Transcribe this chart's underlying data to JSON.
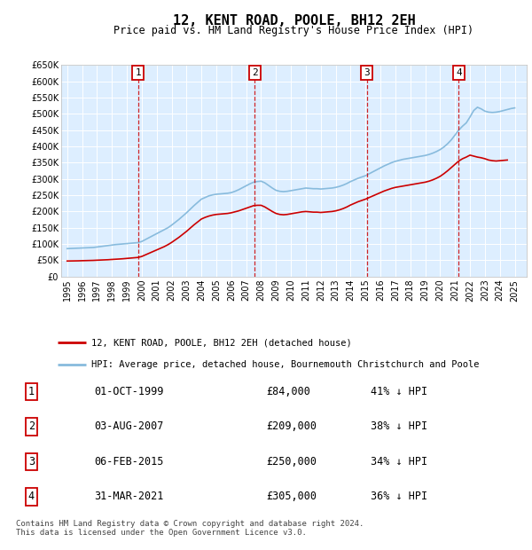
{
  "title": "12, KENT ROAD, POOLE, BH12 2EH",
  "subtitle": "Price paid vs. HM Land Registry's House Price Index (HPI)",
  "ylim": [
    0,
    650000
  ],
  "yticks": [
    0,
    50000,
    100000,
    150000,
    200000,
    250000,
    300000,
    350000,
    400000,
    450000,
    500000,
    550000,
    600000,
    650000
  ],
  "ytick_labels": [
    "£0",
    "£50K",
    "£100K",
    "£150K",
    "£200K",
    "£250K",
    "£300K",
    "£350K",
    "£400K",
    "£450K",
    "£500K",
    "£550K",
    "£600K",
    "£650K"
  ],
  "xlim_start": 1994.6,
  "xlim_end": 2025.8,
  "plot_bg_color": "#ddeeff",
  "grid_color": "#ffffff",
  "sale_line_color": "#cc0000",
  "hpi_line_color": "#88bbdd",
  "sales": [
    {
      "year": 1999.75,
      "price": 84000,
      "label": "1"
    },
    {
      "year": 2007.58,
      "price": 209000,
      "label": "2"
    },
    {
      "year": 2015.09,
      "price": 250000,
      "label": "3"
    },
    {
      "year": 2021.25,
      "price": 305000,
      "label": "4"
    }
  ],
  "legend_items": [
    {
      "label": "12, KENT ROAD, POOLE, BH12 2EH (detached house)",
      "color": "#cc0000"
    },
    {
      "label": "HPI: Average price, detached house, Bournemouth Christchurch and Poole",
      "color": "#88bbdd"
    }
  ],
  "table_rows": [
    {
      "num": "1",
      "date": "01-OCT-1999",
      "price": "£84,000",
      "hpi": "41% ↓ HPI"
    },
    {
      "num": "2",
      "date": "03-AUG-2007",
      "price": "£209,000",
      "hpi": "38% ↓ HPI"
    },
    {
      "num": "3",
      "date": "06-FEB-2015",
      "price": "£250,000",
      "hpi": "34% ↓ HPI"
    },
    {
      "num": "4",
      "date": "31-MAR-2021",
      "price": "£305,000",
      "hpi": "36% ↓ HPI"
    }
  ],
  "footer": "Contains HM Land Registry data © Crown copyright and database right 2024.\nThis data is licensed under the Open Government Licence v3.0.",
  "hpi_years": [
    1995,
    1995.25,
    1995.5,
    1995.75,
    1996,
    1996.25,
    1996.5,
    1996.75,
    1997,
    1997.25,
    1997.5,
    1997.75,
    1998,
    1998.25,
    1998.5,
    1998.75,
    1999,
    1999.25,
    1999.5,
    1999.75,
    2000,
    2000.25,
    2000.5,
    2000.75,
    2001,
    2001.25,
    2001.5,
    2001.75,
    2002,
    2002.25,
    2002.5,
    2002.75,
    2003,
    2003.25,
    2003.5,
    2003.75,
    2004,
    2004.25,
    2004.5,
    2004.75,
    2005,
    2005.25,
    2005.5,
    2005.75,
    2006,
    2006.25,
    2006.5,
    2006.75,
    2007,
    2007.25,
    2007.5,
    2007.75,
    2008,
    2008.25,
    2008.5,
    2008.75,
    2009,
    2009.25,
    2009.5,
    2009.75,
    2010,
    2010.25,
    2010.5,
    2010.75,
    2011,
    2011.25,
    2011.5,
    2011.75,
    2012,
    2012.25,
    2012.5,
    2012.75,
    2013,
    2013.25,
    2013.5,
    2013.75,
    2014,
    2014.25,
    2014.5,
    2014.75,
    2015,
    2015.25,
    2015.5,
    2015.75,
    2016,
    2016.25,
    2016.5,
    2016.75,
    2017,
    2017.25,
    2017.5,
    2017.75,
    2018,
    2018.25,
    2018.5,
    2018.75,
    2019,
    2019.25,
    2019.5,
    2019.75,
    2020,
    2020.25,
    2020.5,
    2020.75,
    2021,
    2021.25,
    2021.5,
    2021.75,
    2022,
    2022.25,
    2022.5,
    2022.75,
    2023,
    2023.25,
    2023.5,
    2023.75,
    2024,
    2024.25,
    2024.5,
    2024.75,
    2025
  ],
  "hpi_values": [
    86000,
    86500,
    87000,
    87500,
    88000,
    88500,
    89000,
    89500,
    91000,
    92500,
    94000,
    95500,
    97000,
    98500,
    99500,
    100500,
    101500,
    102500,
    103500,
    104500,
    108000,
    114000,
    120000,
    126000,
    132000,
    138000,
    144000,
    150000,
    158000,
    167000,
    176000,
    186000,
    196000,
    207000,
    218000,
    228000,
    238000,
    243000,
    248000,
    251000,
    253000,
    254000,
    255000,
    256000,
    258000,
    262000,
    267000,
    273000,
    279000,
    285000,
    290000,
    292000,
    293000,
    288000,
    280000,
    272000,
    265000,
    262000,
    261000,
    262000,
    264000,
    266000,
    268000,
    270000,
    272000,
    271000,
    270000,
    270000,
    269000,
    270000,
    271000,
    272000,
    274000,
    277000,
    281000,
    286000,
    292000,
    297000,
    302000,
    306000,
    310000,
    316000,
    322000,
    328000,
    334000,
    340000,
    345000,
    350000,
    354000,
    357000,
    360000,
    362000,
    364000,
    366000,
    368000,
    370000,
    372000,
    375000,
    379000,
    384000,
    390000,
    398000,
    408000,
    420000,
    435000,
    450000,
    462000,
    472000,
    490000,
    510000,
    520000,
    515000,
    508000,
    505000,
    504000,
    505000,
    507000,
    510000,
    513000,
    516000,
    518000
  ],
  "pp_years": [
    1995,
    1995.25,
    1995.5,
    1995.75,
    1996,
    1996.25,
    1996.5,
    1996.75,
    1997,
    1997.25,
    1997.5,
    1997.75,
    1998,
    1998.25,
    1998.5,
    1998.75,
    1999,
    1999.25,
    1999.5,
    1999.75,
    2000,
    2000.25,
    2000.5,
    2000.75,
    2001,
    2001.25,
    2001.5,
    2001.75,
    2002,
    2002.25,
    2002.5,
    2002.75,
    2003,
    2003.25,
    2003.5,
    2003.75,
    2004,
    2004.25,
    2004.5,
    2004.75,
    2005,
    2005.25,
    2005.5,
    2005.75,
    2006,
    2006.25,
    2006.5,
    2006.75,
    2007,
    2007.25,
    2007.5,
    2007.75,
    2008,
    2008.25,
    2008.5,
    2008.75,
    2009,
    2009.25,
    2009.5,
    2009.75,
    2010,
    2010.25,
    2010.5,
    2010.75,
    2011,
    2011.25,
    2011.5,
    2011.75,
    2012,
    2012.25,
    2012.5,
    2012.75,
    2013,
    2013.25,
    2013.5,
    2013.75,
    2014,
    2014.25,
    2014.5,
    2014.75,
    2015,
    2015.25,
    2015.5,
    2015.75,
    2016,
    2016.25,
    2016.5,
    2016.75,
    2017,
    2017.25,
    2017.5,
    2017.75,
    2018,
    2018.25,
    2018.5,
    2018.75,
    2019,
    2019.25,
    2019.5,
    2019.75,
    2020,
    2020.25,
    2020.5,
    2020.75,
    2021,
    2021.25,
    2021.5,
    2021.75,
    2022,
    2022.25,
    2022.5,
    2022.75,
    2023,
    2023.25,
    2023.5,
    2023.75,
    2024,
    2024.25,
    2024.5
  ],
  "pp_values": [
    48000,
    48200,
    48400,
    48600,
    49000,
    49300,
    49600,
    49900,
    50500,
    51000,
    51500,
    52000,
    52800,
    53500,
    54200,
    55000,
    56000,
    57000,
    58000,
    59000,
    62000,
    67000,
    72000,
    77000,
    82000,
    87000,
    92000,
    98000,
    105000,
    113000,
    121000,
    130000,
    139000,
    149000,
    159000,
    168000,
    177000,
    182000,
    186000,
    189000,
    191000,
    192000,
    193000,
    194000,
    196000,
    199000,
    202000,
    206000,
    210000,
    214000,
    218000,
    219000,
    219000,
    214000,
    207000,
    200000,
    194000,
    191000,
    190000,
    191000,
    193000,
    195000,
    197000,
    199000,
    200000,
    199000,
    198000,
    198000,
    197000,
    198000,
    199000,
    200000,
    202000,
    205000,
    209000,
    214000,
    220000,
    225000,
    230000,
    234000,
    238000,
    243000,
    248000,
    253000,
    258000,
    263000,
    267000,
    271000,
    274000,
    276000,
    278000,
    280000,
    282000,
    284000,
    286000,
    288000,
    290000,
    293000,
    297000,
    302000,
    308000,
    316000,
    325000,
    335000,
    345000,
    355000,
    362000,
    367000,
    373000,
    370000,
    367000,
    365000,
    362000,
    358000,
    356000,
    355000,
    356000,
    357000,
    358000
  ]
}
